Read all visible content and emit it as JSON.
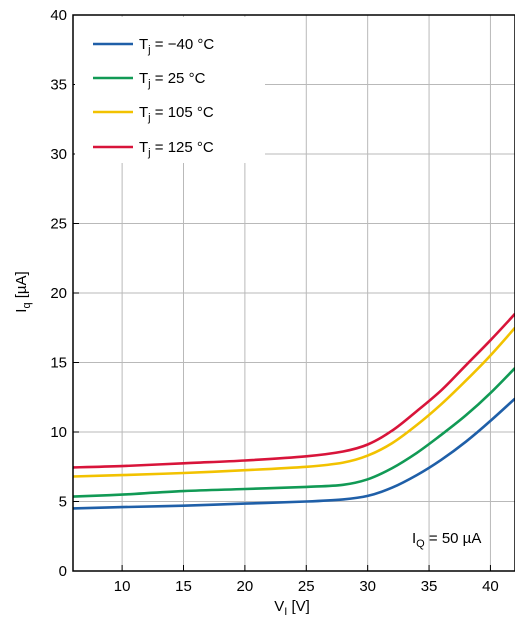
{
  "chart_data": {
    "type": "line",
    "xlabel_main": "V",
    "xlabel_sub": "I",
    "xlabel_unit": " [V]",
    "ylabel_main": "I",
    "ylabel_sub": "q",
    "ylabel_unit": " [µA]",
    "xlim": [
      6,
      42
    ],
    "ylim": [
      0,
      40
    ],
    "xticks": [
      10,
      15,
      20,
      25,
      30,
      35,
      40
    ],
    "yticks": [
      0,
      5,
      10,
      15,
      20,
      25,
      30,
      35,
      40
    ],
    "grid": true,
    "legend_position": "top-left",
    "annotation": {
      "main": "I",
      "sub": "Q",
      "rest": " = 50 µA"
    },
    "series": [
      {
        "name_main": "T",
        "name_sub": "j",
        "name_rest": " = −40 °C",
        "color": "#1f5fa8",
        "x": [
          6,
          10,
          15,
          20,
          25,
          28,
          30,
          32,
          34,
          36,
          38,
          40,
          42
        ],
        "y": [
          4.5,
          4.6,
          4.7,
          4.85,
          5.0,
          5.15,
          5.4,
          6.0,
          6.9,
          8.0,
          9.3,
          10.8,
          12.4
        ]
      },
      {
        "name_main": "T",
        "name_sub": "j",
        "name_rest": " = 25 °C",
        "color": "#119a55",
        "x": [
          6,
          10,
          15,
          20,
          25,
          28,
          30,
          32,
          34,
          36,
          38,
          40,
          42
        ],
        "y": [
          5.35,
          5.5,
          5.75,
          5.9,
          6.05,
          6.2,
          6.6,
          7.4,
          8.5,
          9.8,
          11.2,
          12.8,
          14.6
        ]
      },
      {
        "name_main": "T",
        "name_sub": "j",
        "name_rest": " = 105 °C",
        "color": "#f2c200",
        "x": [
          6,
          10,
          15,
          20,
          25,
          28,
          30,
          32,
          34,
          36,
          38,
          40,
          42
        ],
        "y": [
          6.8,
          6.9,
          7.05,
          7.25,
          7.5,
          7.8,
          8.3,
          9.2,
          10.5,
          12.0,
          13.7,
          15.5,
          17.5
        ]
      },
      {
        "name_main": "T",
        "name_sub": "j",
        "name_rest": " = 125 °C",
        "color": "#d8143a",
        "x": [
          6,
          10,
          15,
          20,
          25,
          28,
          30,
          32,
          34,
          36,
          38,
          40,
          42
        ],
        "y": [
          7.45,
          7.55,
          7.75,
          7.95,
          8.25,
          8.6,
          9.1,
          10.1,
          11.5,
          13.0,
          14.8,
          16.6,
          18.5
        ]
      }
    ]
  }
}
